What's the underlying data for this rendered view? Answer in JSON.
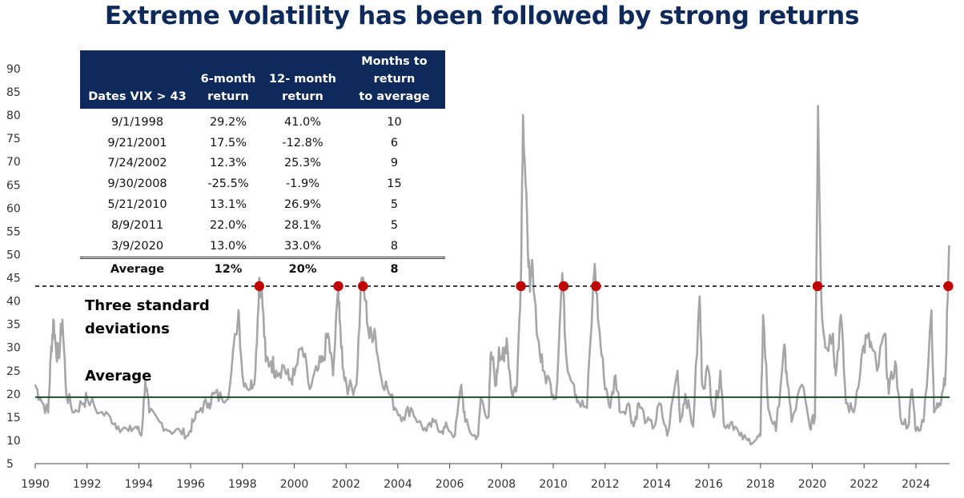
{
  "chart_data": {
    "type": "line",
    "title": "Extreme volatility has been followed by strong returns",
    "ylim": [
      5,
      90
    ],
    "yticks": [
      90,
      85,
      80,
      75,
      70,
      65,
      60,
      55,
      50,
      45,
      40,
      35,
      30,
      25,
      20,
      15,
      10,
      5
    ],
    "xlim": [
      1990,
      2025.3
    ],
    "xticks": [
      "1990",
      "1992",
      "1994",
      "1996",
      "1998",
      "2000",
      "2002",
      "2004",
      "2006",
      "2008",
      "2010",
      "2012",
      "2014",
      "2016",
      "2018",
      "2020",
      "2022",
      "2024"
    ],
    "grid": false,
    "series": [
      {
        "color": "#a6a6a6",
        "points": [
          [
            1990.0,
            22
          ],
          [
            1990.2,
            19
          ],
          [
            1990.5,
            16
          ],
          [
            1990.6,
            28
          ],
          [
            1990.7,
            36
          ],
          [
            1990.8,
            30
          ],
          [
            1990.9,
            28
          ],
          [
            1991.05,
            36
          ],
          [
            1991.2,
            20
          ],
          [
            1991.5,
            16
          ],
          [
            1991.8,
            18
          ],
          [
            1992.0,
            19
          ],
          [
            1992.5,
            16
          ],
          [
            1992.9,
            15
          ],
          [
            1993.2,
            13
          ],
          [
            1993.6,
            12
          ],
          [
            1993.9,
            13
          ],
          [
            1994.1,
            11
          ],
          [
            1994.25,
            23
          ],
          [
            1994.4,
            16
          ],
          [
            1994.8,
            14
          ],
          [
            1995.2,
            12
          ],
          [
            1995.6,
            12
          ],
          [
            1995.9,
            11
          ],
          [
            1996.1,
            14
          ],
          [
            1996.4,
            17
          ],
          [
            1996.7,
            18
          ],
          [
            1996.9,
            20
          ],
          [
            1997.2,
            19
          ],
          [
            1997.5,
            21
          ],
          [
            1997.85,
            38
          ],
          [
            1998.0,
            24
          ],
          [
            1998.3,
            21
          ],
          [
            1998.5,
            25
          ],
          [
            1998.65,
            45
          ],
          [
            1998.75,
            42
          ],
          [
            1998.9,
            27
          ],
          [
            1999.1,
            27
          ],
          [
            1999.3,
            25
          ],
          [
            1999.6,
            26
          ],
          [
            1999.8,
            23
          ],
          [
            2000.0,
            24
          ],
          [
            2000.3,
            30
          ],
          [
            2000.6,
            21
          ],
          [
            2000.9,
            25
          ],
          [
            2001.1,
            27
          ],
          [
            2001.3,
            33
          ],
          [
            2001.5,
            24
          ],
          [
            2001.7,
            43
          ],
          [
            2001.75,
            36
          ],
          [
            2001.9,
            25
          ],
          [
            2002.1,
            21
          ],
          [
            2002.4,
            22
          ],
          [
            2002.6,
            45
          ],
          [
            2002.75,
            40
          ],
          [
            2002.9,
            32
          ],
          [
            2003.1,
            34
          ],
          [
            2003.3,
            25
          ],
          [
            2003.6,
            21
          ],
          [
            2003.9,
            17
          ],
          [
            2004.2,
            15
          ],
          [
            2004.5,
            17
          ],
          [
            2004.8,
            14
          ],
          [
            2005.1,
            12
          ],
          [
            2005.4,
            14
          ],
          [
            2005.7,
            12
          ],
          [
            2005.9,
            13
          ],
          [
            2006.2,
            11
          ],
          [
            2006.45,
            22
          ],
          [
            2006.6,
            14
          ],
          [
            2006.9,
            11
          ],
          [
            2007.1,
            11
          ],
          [
            2007.2,
            19
          ],
          [
            2007.5,
            15
          ],
          [
            2007.6,
            29
          ],
          [
            2007.8,
            22
          ],
          [
            2007.9,
            30
          ],
          [
            2008.1,
            27
          ],
          [
            2008.2,
            32
          ],
          [
            2008.4,
            20
          ],
          [
            2008.6,
            22
          ],
          [
            2008.75,
            45
          ],
          [
            2008.83,
            80
          ],
          [
            2008.9,
            70
          ],
          [
            2009.0,
            55
          ],
          [
            2009.1,
            42
          ],
          [
            2009.2,
            48
          ],
          [
            2009.4,
            32
          ],
          [
            2009.6,
            25
          ],
          [
            2009.9,
            22
          ],
          [
            2010.1,
            19
          ],
          [
            2010.35,
            46
          ],
          [
            2010.5,
            28
          ],
          [
            2010.8,
            22
          ],
          [
            2011.0,
            18
          ],
          [
            2011.3,
            17
          ],
          [
            2011.6,
            48
          ],
          [
            2011.75,
            35
          ],
          [
            2011.95,
            24
          ],
          [
            2012.2,
            17
          ],
          [
            2012.4,
            24
          ],
          [
            2012.6,
            16
          ],
          [
            2012.9,
            18
          ],
          [
            2013.1,
            13
          ],
          [
            2013.3,
            18
          ],
          [
            2013.6,
            14
          ],
          [
            2013.9,
            13
          ],
          [
            2014.1,
            18
          ],
          [
            2014.4,
            11
          ],
          [
            2014.8,
            25
          ],
          [
            2014.9,
            14
          ],
          [
            2015.1,
            20
          ],
          [
            2015.4,
            13
          ],
          [
            2015.65,
            41
          ],
          [
            2015.75,
            22
          ],
          [
            2016.0,
            25
          ],
          [
            2016.2,
            15
          ],
          [
            2016.45,
            25
          ],
          [
            2016.6,
            13
          ],
          [
            2016.9,
            14
          ],
          [
            2017.2,
            11
          ],
          [
            2017.5,
            10
          ],
          [
            2017.8,
            10
          ],
          [
            2018.0,
            11
          ],
          [
            2018.1,
            37
          ],
          [
            2018.3,
            17
          ],
          [
            2018.6,
            12
          ],
          [
            2018.9,
            30
          ],
          [
            2019.0,
            25
          ],
          [
            2019.2,
            14
          ],
          [
            2019.6,
            22
          ],
          [
            2019.9,
            13
          ],
          [
            2020.1,
            15
          ],
          [
            2020.22,
            82
          ],
          [
            2020.35,
            40
          ],
          [
            2020.5,
            30
          ],
          [
            2020.8,
            33
          ],
          [
            2020.9,
            24
          ],
          [
            2021.1,
            37
          ],
          [
            2021.3,
            18
          ],
          [
            2021.6,
            16
          ],
          [
            2021.9,
            28
          ],
          [
            2022.1,
            32
          ],
          [
            2022.3,
            30
          ],
          [
            2022.5,
            25
          ],
          [
            2022.8,
            33
          ],
          [
            2022.95,
            20
          ],
          [
            2023.2,
            27
          ],
          [
            2023.4,
            15
          ],
          [
            2023.7,
            13
          ],
          [
            2023.85,
            21
          ],
          [
            2024.0,
            12
          ],
          [
            2024.3,
            14
          ],
          [
            2024.6,
            38
          ],
          [
            2024.7,
            16
          ],
          [
            2024.9,
            18
          ],
          [
            2025.0,
            20
          ],
          [
            2025.15,
            25
          ],
          [
            2025.28,
            52
          ]
        ]
      }
    ],
    "threshold_line": {
      "y": 43.2,
      "label": "Three standard deviations",
      "style": "dashed",
      "color": "#000000"
    },
    "average_line": {
      "y": 19.3,
      "label": "Average",
      "color": "#1e4d2b"
    },
    "markers": {
      "color": "#c00000",
      "x": [
        1998.65,
        2001.7,
        2002.65,
        2008.75,
        2010.4,
        2011.65,
        2020.2,
        2025.25
      ],
      "y": 43.2
    }
  },
  "table": {
    "headers": [
      {
        "line1": "",
        "line2": "Dates VIX > 43"
      },
      {
        "line1": "6-month",
        "line2": "return"
      },
      {
        "line1": "12- month",
        "line2": "return"
      },
      {
        "line1": "Months to return",
        "line2": "to average"
      }
    ],
    "rows": [
      [
        "9/1/1998",
        "29.2%",
        "41.0%",
        "10"
      ],
      [
        "9/21/2001",
        "17.5%",
        "-12.8%",
        "6"
      ],
      [
        "7/24/2002",
        "12.3%",
        "25.3%",
        "9"
      ],
      [
        "9/30/2008",
        "-25.5%",
        "-1.9%",
        "15"
      ],
      [
        "5/21/2010",
        "13.1%",
        "26.9%",
        "5"
      ],
      [
        "8/9/2011",
        "22.0%",
        "28.1%",
        "5"
      ],
      [
        "3/9/2020",
        "13.0%",
        "33.0%",
        "8"
      ]
    ],
    "average": [
      "Average",
      "12%",
      "20%",
      "8"
    ]
  }
}
